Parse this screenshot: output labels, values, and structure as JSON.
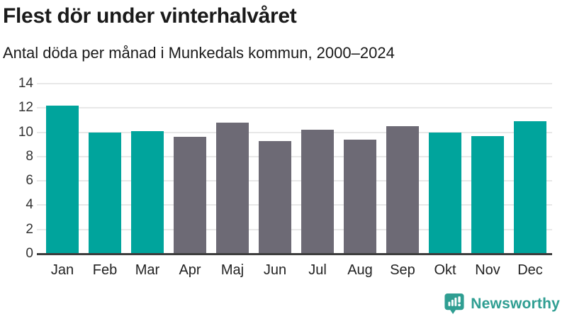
{
  "header": {
    "title": "Flest dör under vinterhalvåret",
    "subtitle": "Antal döda per månad i Munkedals kommun, 2000–2024"
  },
  "chart_data": {
    "type": "bar",
    "title": "Flest dör under vinterhalvåret",
    "subtitle": "Antal döda per månad i Munkedals kommun, 2000–2024",
    "categories": [
      "Jan",
      "Feb",
      "Mar",
      "Apr",
      "Maj",
      "Jun",
      "Jul",
      "Aug",
      "Sep",
      "Okt",
      "Nov",
      "Dec"
    ],
    "values": [
      12.2,
      10.0,
      10.1,
      9.6,
      10.8,
      9.3,
      10.2,
      9.4,
      10.5,
      10.0,
      9.7,
      10.9
    ],
    "bar_colors": [
      "#00a49c",
      "#00a49c",
      "#00a49c",
      "#6d6a75",
      "#6d6a75",
      "#6d6a75",
      "#6d6a75",
      "#6d6a75",
      "#6d6a75",
      "#00a49c",
      "#00a49c",
      "#00a49c"
    ],
    "highlight_color": "#00a49c",
    "muted_color": "#6d6a75",
    "xlabel": "",
    "ylabel": "",
    "ylim": [
      0,
      14
    ],
    "yticks": [
      0,
      2,
      4,
      6,
      8,
      10,
      12,
      14
    ],
    "grid": "horizontal",
    "legend": "none",
    "style": {
      "grid_color": "#e8e8e8",
      "axis_color": "#3d3d3d",
      "y_label_color": "#333333",
      "x_label_color": "#222222"
    }
  },
  "footer": {
    "brand": "Newsworthy",
    "brand_color": "#2f9e92",
    "logo_icon": "bar-chart-speech-bubble-icon"
  }
}
